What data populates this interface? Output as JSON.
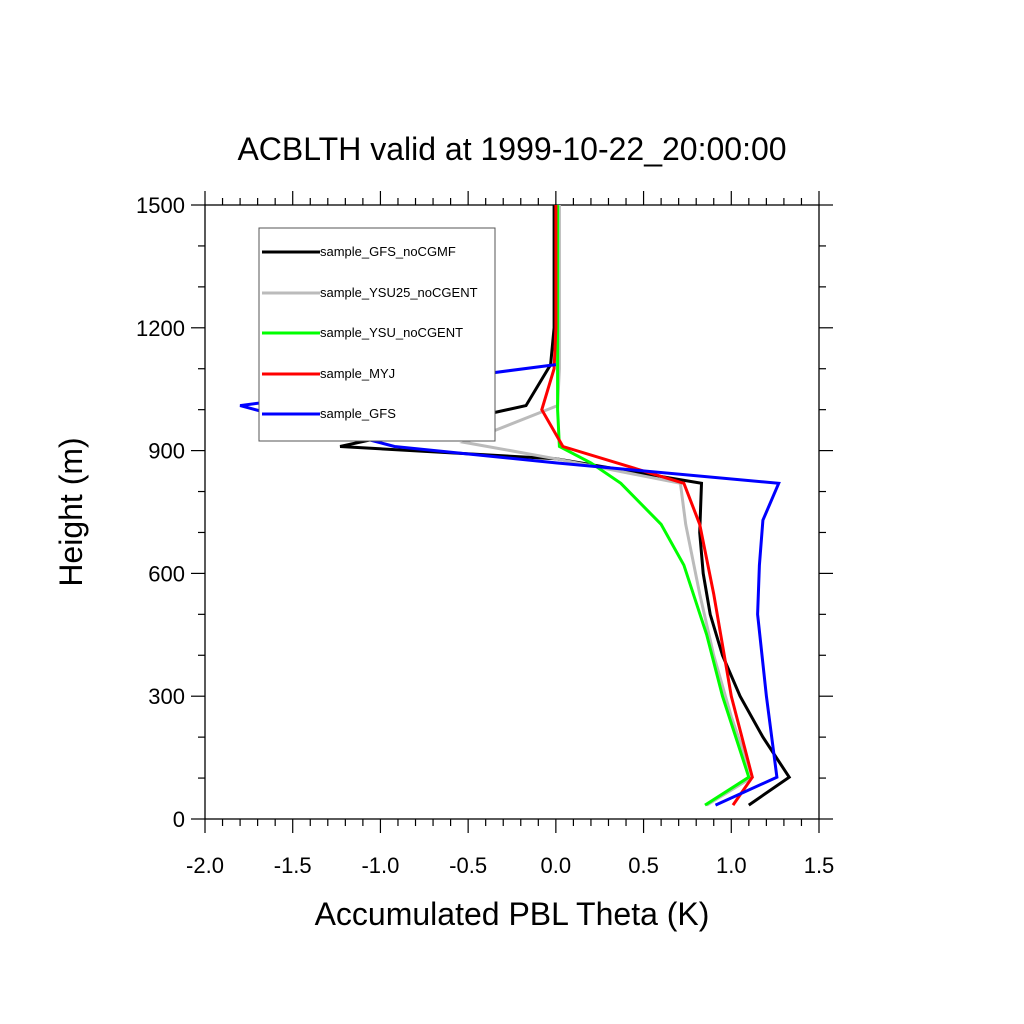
{
  "chart_data": {
    "type": "line",
    "title": "ACBLTH valid at 1999-10-22_20:00:00",
    "xlabel": "Accumulated PBL Theta (K)",
    "ylabel": "Height (m)",
    "xlim": [
      -2.0,
      1.5
    ],
    "ylim": [
      0,
      1500
    ],
    "xticks": [
      "-2.0",
      "-1.5",
      "-1.0",
      "-0.5",
      "0.0",
      "0.5",
      "1.0",
      "1.5"
    ],
    "yticks": [
      "0",
      "300",
      "600",
      "900",
      "1200",
      "1500"
    ],
    "grid": false,
    "legend_position": "top-left",
    "series": [
      {
        "name": "sample_GFS_noCGMF",
        "color": "#000000",
        "points": [
          [
            1.1,
            34
          ],
          [
            1.33,
            102
          ],
          [
            1.18,
            200
          ],
          [
            1.05,
            300
          ],
          [
            0.95,
            400
          ],
          [
            0.88,
            500
          ],
          [
            0.84,
            600
          ],
          [
            0.82,
            700
          ],
          [
            0.83,
            820
          ],
          [
            0.0,
            880
          ],
          [
            -1.23,
            910
          ],
          [
            -0.17,
            1010
          ],
          [
            -0.03,
            1110
          ],
          [
            -0.01,
            1200
          ],
          [
            -0.01,
            1500
          ]
        ]
      },
      {
        "name": "sample_YSU25_noCGENT",
        "color": "#bbbbbb",
        "points": [
          [
            0.86,
            34
          ],
          [
            1.12,
            102
          ],
          [
            1.0,
            250
          ],
          [
            0.9,
            400
          ],
          [
            0.82,
            550
          ],
          [
            0.74,
            720
          ],
          [
            0.71,
            820
          ],
          [
            0.0,
            880
          ],
          [
            -0.52,
            920
          ],
          [
            0.01,
            1010
          ],
          [
            0.02,
            1100
          ],
          [
            0.02,
            1200
          ],
          [
            0.02,
            1500
          ]
        ]
      },
      {
        "name": "sample_YSU_noCGENT",
        "color": "#00ff00",
        "points": [
          [
            0.85,
            34
          ],
          [
            1.1,
            102
          ],
          [
            0.95,
            300
          ],
          [
            0.86,
            450
          ],
          [
            0.73,
            620
          ],
          [
            0.6,
            720
          ],
          [
            0.37,
            820
          ],
          [
            0.2,
            870
          ],
          [
            0.02,
            910
          ],
          [
            0.01,
            1000
          ],
          [
            0.01,
            1100
          ],
          [
            0.01,
            1200
          ],
          [
            0.01,
            1500
          ]
        ]
      },
      {
        "name": "sample_MYJ",
        "color": "#ff0000",
        "points": [
          [
            1.01,
            34
          ],
          [
            1.12,
            102
          ],
          [
            1.0,
            300
          ],
          [
            0.9,
            550
          ],
          [
            0.82,
            720
          ],
          [
            0.73,
            820
          ],
          [
            0.04,
            910
          ],
          [
            -0.08,
            1000
          ],
          [
            -0.01,
            1100
          ],
          [
            0.0,
            1200
          ],
          [
            0.0,
            1500
          ]
        ]
      },
      {
        "name": "sample_GFS",
        "color": "#0000ff",
        "points": [
          [
            0.91,
            34
          ],
          [
            1.26,
            102
          ],
          [
            1.2,
            300
          ],
          [
            1.15,
            500
          ],
          [
            1.16,
            620
          ],
          [
            1.18,
            730
          ],
          [
            1.27,
            820
          ],
          [
            0.0,
            870
          ],
          [
            -0.92,
            910
          ],
          [
            -1.8,
            1010
          ],
          [
            0.0,
            1110
          ]
        ]
      }
    ]
  }
}
